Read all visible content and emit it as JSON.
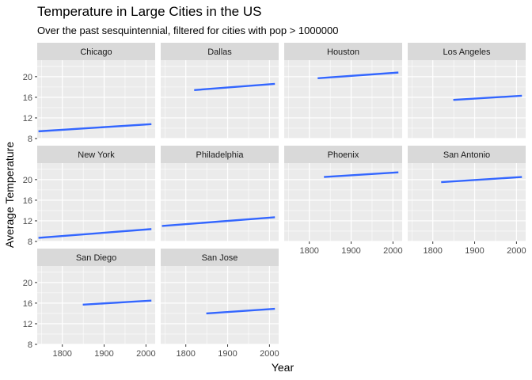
{
  "chart_data": {
    "type": "line",
    "title": "Temperature in Large Cities in the US",
    "subtitle": "Over the past sesquintennial, filtered for cities with pop > 1000000",
    "xlabel": "Year",
    "ylabel": "Average Temperature",
    "xlim": [
      1740,
      2022
    ],
    "ylim": [
      8,
      23.2
    ],
    "xticks": [
      1800,
      1900,
      2000
    ],
    "yticks": [
      8,
      12,
      16,
      20
    ],
    "grid": true,
    "line_color": "#3366FF",
    "panel_background": "#EBEBEB",
    "strip_background": "#D9D9D9",
    "facets": [
      {
        "name": "Chicago",
        "x": [
          1743,
          2013
        ],
        "y": [
          9.4,
          10.8
        ]
      },
      {
        "name": "Dallas",
        "x": [
          1820,
          2013
        ],
        "y": [
          17.4,
          18.6
        ]
      },
      {
        "name": "Houston",
        "x": [
          1820,
          2013
        ],
        "y": [
          19.7,
          20.8
        ]
      },
      {
        "name": "Los Angeles",
        "x": [
          1849,
          2013
        ],
        "y": [
          15.5,
          16.3
        ]
      },
      {
        "name": "New York",
        "x": [
          1743,
          2013
        ],
        "y": [
          8.7,
          10.4
        ]
      },
      {
        "name": "Philadelphia",
        "x": [
          1743,
          2013
        ],
        "y": [
          11.0,
          12.7
        ]
      },
      {
        "name": "Phoenix",
        "x": [
          1835,
          2013
        ],
        "y": [
          20.5,
          21.4
        ]
      },
      {
        "name": "San Antonio",
        "x": [
          1820,
          2013
        ],
        "y": [
          19.5,
          20.5
        ]
      },
      {
        "name": "San Diego",
        "x": [
          1849,
          2013
        ],
        "y": [
          15.7,
          16.5
        ]
      },
      {
        "name": "San Jose",
        "x": [
          1849,
          2013
        ],
        "y": [
          14.0,
          14.9
        ]
      }
    ]
  }
}
